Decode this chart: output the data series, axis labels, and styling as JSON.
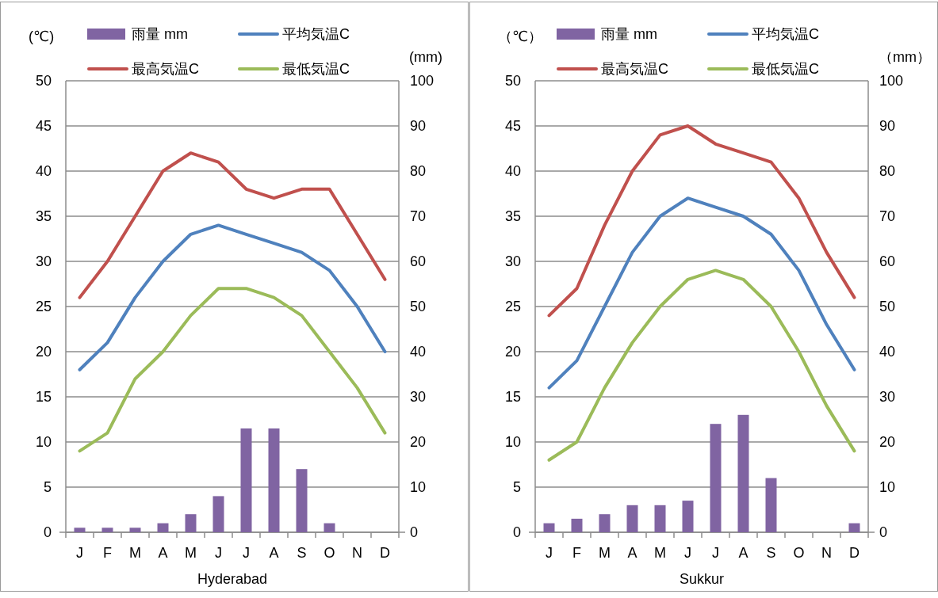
{
  "chart_data": [
    {
      "type": "line",
      "xlabel": "Hyderabad",
      "ylabel": "(℃)",
      "y2label": "(mm)",
      "categories": [
        "J",
        "F",
        "M",
        "A",
        "M",
        "J",
        "J",
        "A",
        "S",
        "O",
        "N",
        "D"
      ],
      "ylim": [
        0,
        50
      ],
      "yticks": [
        0,
        5,
        10,
        15,
        20,
        25,
        30,
        35,
        40,
        45,
        50
      ],
      "y2lim": [
        0,
        100
      ],
      "y2ticks": [
        0,
        10,
        20,
        30,
        40,
        50,
        60,
        70,
        80,
        90,
        100
      ],
      "grid": "y",
      "legend": "top",
      "series": [
        {
          "name": "雨量 mm",
          "type": "bar",
          "axis": "y2",
          "color": "#8064a2",
          "values": [
            1,
            1,
            1,
            2,
            4,
            8,
            23,
            23,
            14,
            2,
            0,
            0
          ]
        },
        {
          "name": "平均気温C",
          "color": "#4f81bd",
          "values": [
            18,
            21,
            26,
            30,
            33,
            34,
            33,
            32,
            31,
            29,
            25,
            20
          ]
        },
        {
          "name": "最高気温C",
          "color": "#c0504d",
          "values": [
            26,
            30,
            35,
            40,
            42,
            41,
            38,
            37,
            38,
            38,
            33,
            28
          ]
        },
        {
          "name": "最低気温C",
          "color": "#9bbb59",
          "values": [
            9,
            11,
            17,
            20,
            24,
            27,
            27,
            26,
            24,
            20,
            16,
            11
          ]
        }
      ]
    },
    {
      "type": "line",
      "xlabel": "Sukkur",
      "ylabel": "（℃）",
      "y2label": "（mm）",
      "categories": [
        "J",
        "F",
        "M",
        "A",
        "M",
        "J",
        "J",
        "A",
        "S",
        "O",
        "N",
        "D"
      ],
      "ylim": [
        0,
        50
      ],
      "yticks": [
        0,
        5,
        10,
        15,
        20,
        25,
        30,
        35,
        40,
        45,
        50
      ],
      "y2lim": [
        0,
        100
      ],
      "y2ticks": [
        0,
        10,
        20,
        30,
        40,
        50,
        60,
        70,
        80,
        90,
        100
      ],
      "grid": "y",
      "legend": "top",
      "series": [
        {
          "name": "雨量 mm",
          "type": "bar",
          "axis": "y2",
          "color": "#8064a2",
          "values": [
            2,
            3,
            4,
            6,
            6,
            7,
            24,
            26,
            12,
            0,
            0,
            2
          ]
        },
        {
          "name": "平均気温C",
          "color": "#4f81bd",
          "values": [
            16,
            19,
            25,
            31,
            35,
            37,
            36,
            35,
            33,
            29,
            23,
            18
          ]
        },
        {
          "name": "最高気温C",
          "color": "#c0504d",
          "values": [
            24,
            27,
            34,
            40,
            44,
            45,
            43,
            42,
            41,
            37,
            31,
            26
          ]
        },
        {
          "name": "最低気温C",
          "color": "#9bbb59",
          "values": [
            8,
            10,
            16,
            21,
            25,
            28,
            29,
            28,
            25,
            20,
            14,
            9
          ]
        }
      ]
    }
  ]
}
